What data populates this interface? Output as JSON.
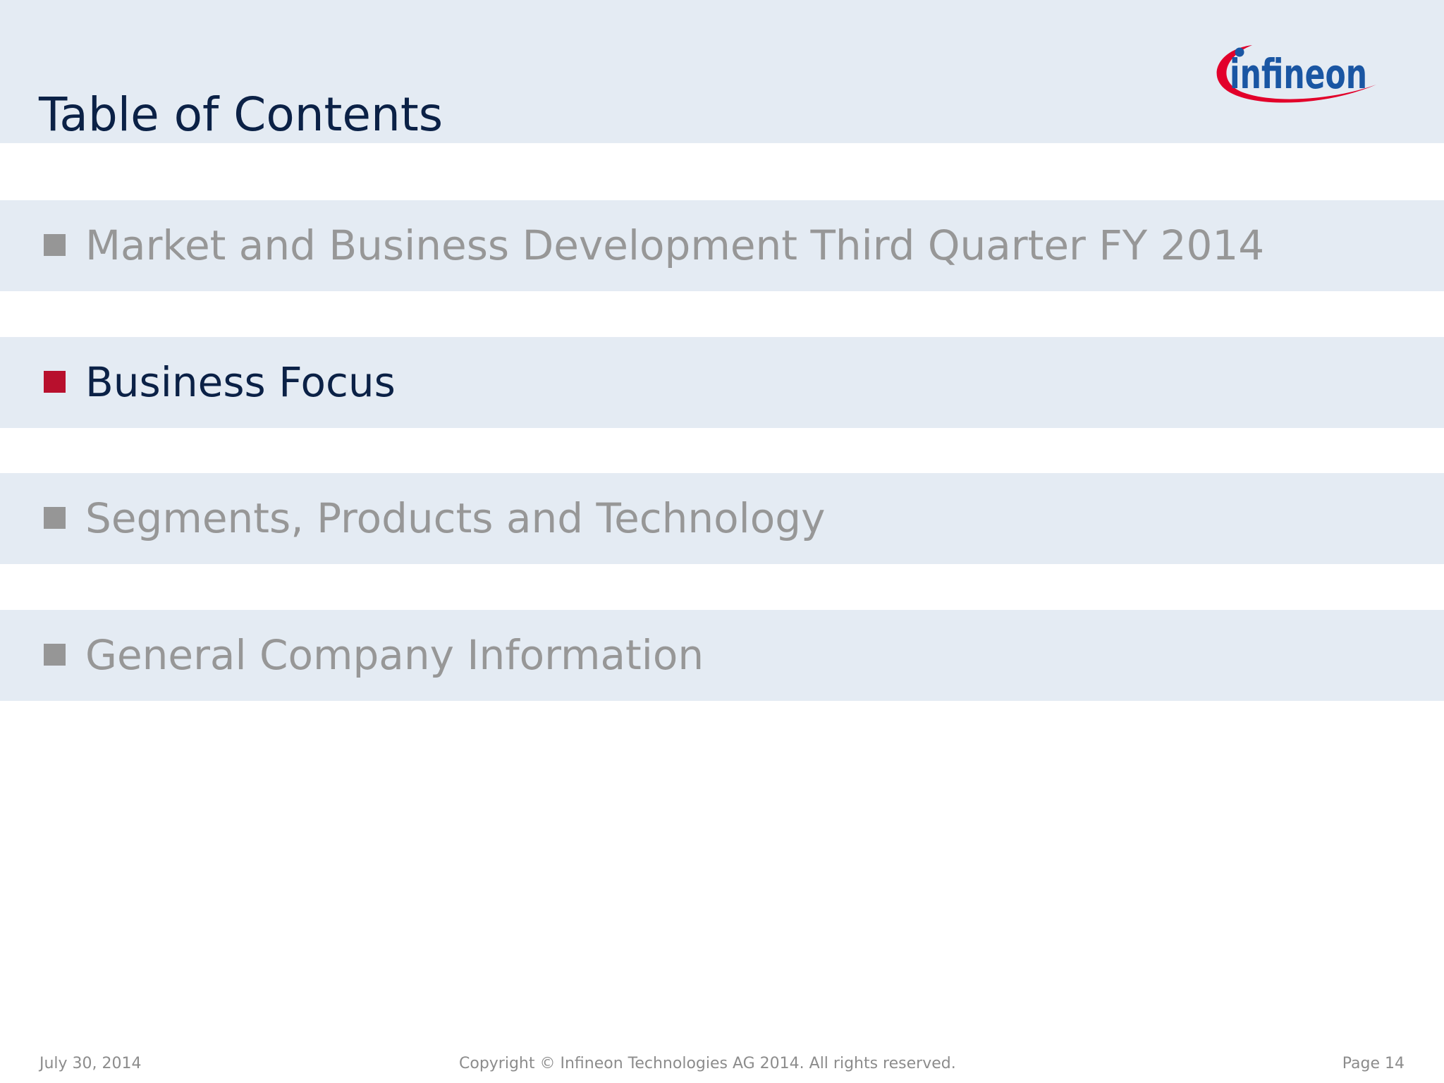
{
  "slide": {
    "title": "Table of Contents",
    "logo": {
      "text": "infineon",
      "name": "infineon-logo"
    },
    "toc": [
      {
        "label": "Market and Business Development Third Quarter FY 2014",
        "active": false
      },
      {
        "label": "Business Focus",
        "active": true
      },
      {
        "label": "Segments, Products and Technology",
        "active": false
      },
      {
        "label": "General Company Information",
        "active": false
      }
    ],
    "footer": {
      "date": "July 30, 2014",
      "copyright": "Copyright © Infineon Technologies AG 2014. All rights reserved.",
      "page": "Page 14"
    }
  },
  "colors": {
    "header_band": "#e4ebf3",
    "title": "#0b2146",
    "active_bullet": "#b8102d",
    "inactive_bullet": "#969696",
    "inactive_text": "#979797",
    "logo_blue": "#1a56a3",
    "logo_red": "#e2002a"
  }
}
